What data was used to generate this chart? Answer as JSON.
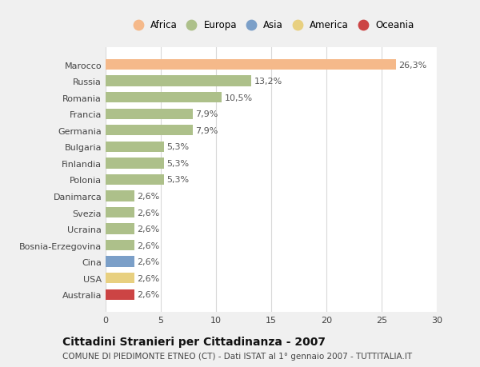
{
  "countries": [
    "Marocco",
    "Russia",
    "Romania",
    "Francia",
    "Germania",
    "Bulgaria",
    "Finlandia",
    "Polonia",
    "Danimarca",
    "Svezia",
    "Ucraina",
    "Bosnia-Erzegovina",
    "Cina",
    "USA",
    "Australia"
  ],
  "values": [
    26.3,
    13.2,
    10.5,
    7.9,
    7.9,
    5.3,
    5.3,
    5.3,
    2.6,
    2.6,
    2.6,
    2.6,
    2.6,
    2.6,
    2.6
  ],
  "labels": [
    "26,3%",
    "13,2%",
    "10,5%",
    "7,9%",
    "7,9%",
    "5,3%",
    "5,3%",
    "5,3%",
    "2,6%",
    "2,6%",
    "2,6%",
    "2,6%",
    "2,6%",
    "2,6%",
    "2,6%"
  ],
  "colors": [
    "#f5b98a",
    "#adc08a",
    "#adc08a",
    "#adc08a",
    "#adc08a",
    "#adc08a",
    "#adc08a",
    "#adc08a",
    "#adc08a",
    "#adc08a",
    "#adc08a",
    "#adc08a",
    "#7b9fc8",
    "#e8d080",
    "#cc4444"
  ],
  "legend_labels": [
    "Africa",
    "Europa",
    "Asia",
    "America",
    "Oceania"
  ],
  "legend_colors": [
    "#f5b98a",
    "#adc08a",
    "#7b9fc8",
    "#e8d080",
    "#cc4444"
  ],
  "xlim": [
    0,
    30
  ],
  "xticks": [
    0,
    5,
    10,
    15,
    20,
    25,
    30
  ],
  "title": "Cittadini Stranieri per Cittadinanza - 2007",
  "subtitle": "COMUNE DI PIEDIMONTE ETNEO (CT) - Dati ISTAT al 1° gennaio 2007 - TUTTITALIA.IT",
  "bg_color": "#f0f0f0",
  "bar_area_color": "#ffffff",
  "title_fontsize": 10,
  "subtitle_fontsize": 7.5,
  "label_fontsize": 8,
  "tick_fontsize": 8,
  "legend_fontsize": 8.5
}
